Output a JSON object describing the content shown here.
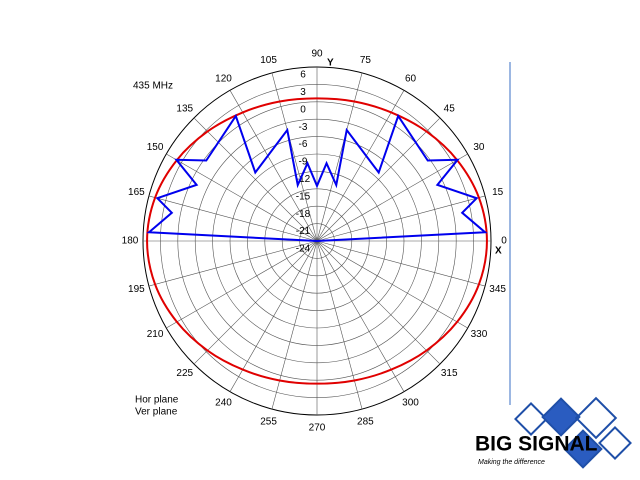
{
  "chart_data": {
    "type": "polar",
    "annotation": "435 MHz",
    "x_axis_label": "X",
    "y_axis_label": "Y",
    "rlim": [
      -24,
      6
    ],
    "rticks": [
      6,
      3,
      0,
      -3,
      -6,
      -9,
      -12,
      -15,
      -18,
      -21,
      -24
    ],
    "thetaticks": [
      0,
      15,
      30,
      45,
      60,
      75,
      90,
      105,
      120,
      135,
      150,
      165,
      180,
      195,
      210,
      225,
      240,
      255,
      270,
      285,
      300,
      315,
      330,
      345
    ],
    "grid": true,
    "legend": "bottom-left",
    "series": [
      {
        "name": "Hor plane",
        "color": "#e00000",
        "closed": true,
        "smooth": true,
        "theta": [
          0,
          15,
          30,
          45,
          60,
          75,
          90,
          105,
          120,
          135,
          150,
          165,
          180,
          195,
          210,
          225,
          240,
          255,
          270,
          285,
          300,
          315,
          330,
          345
        ],
        "values": [
          5.3,
          4.9,
          3.9,
          2.7,
          1.6,
          0.9,
          0.6,
          0.9,
          1.6,
          2.7,
          3.9,
          4.9,
          5.3,
          4.9,
          3.9,
          2.7,
          1.6,
          0.9,
          0.6,
          0.9,
          1.6,
          2.7,
          3.9,
          4.9
        ]
      },
      {
        "name": "Ver plane",
        "color": "#0000ee",
        "closed": true,
        "smooth": false,
        "theta": [
          3,
          11,
          15,
          25,
          30,
          36,
          57,
          48,
          75,
          71,
          83,
          90,
          97,
          109,
          105,
          132,
          123,
          144,
          150,
          155,
          165,
          169,
          177,
          270
        ],
        "values": [
          5.0,
          1.5,
          4.5,
          -1.1,
          4.0,
          -0.4,
          1.7,
          -8.1,
          -4.2,
          -13.8,
          -10.5,
          -14.5,
          -10.5,
          -13.8,
          -4.2,
          -8.1,
          1.7,
          -0.4,
          4.0,
          -1.1,
          4.5,
          1.5,
          5.0,
          -24
        ]
      }
    ]
  },
  "logo": {
    "name": "BIG SIGNAL",
    "tagline": "Making the difference"
  }
}
